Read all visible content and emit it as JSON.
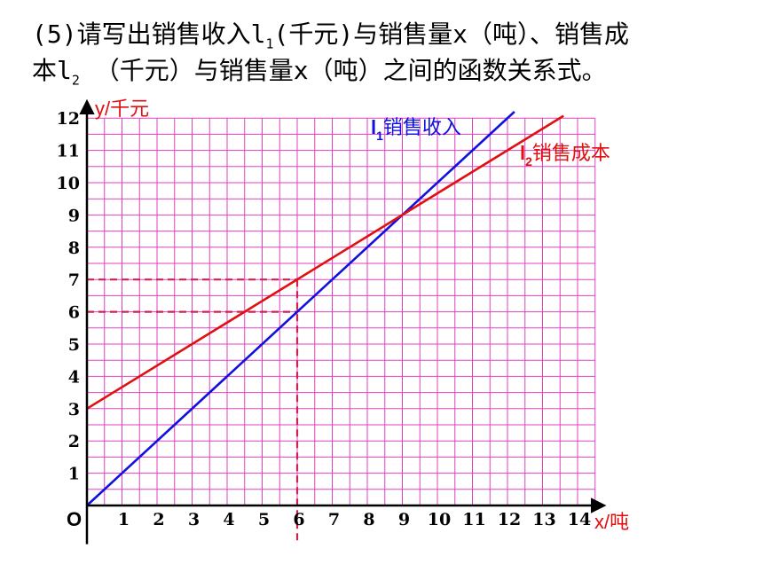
{
  "question": {
    "line1_pre": "(5)请写出销售收入l",
    "line1_sub": "1",
    "line1_post": "(千元)与销售量x（吨）、销售成",
    "line2_pre": "本l",
    "line2_sub": "2",
    "line2_post": " （千元）与销售量x（吨）之间的函数关系式。"
  },
  "chart_data": {
    "type": "line",
    "title": "",
    "xlabel": "x/吨",
    "ylabel": "y/千元",
    "origin_label": "O",
    "xlim": [
      0,
      14.5
    ],
    "ylim": [
      0,
      12.5
    ],
    "x_ticks": [
      "1",
      "2",
      "3",
      "4",
      "5",
      "6",
      "7",
      "8",
      "9",
      "10",
      "11",
      "12",
      "13",
      "14"
    ],
    "y_ticks": [
      "1",
      "2",
      "3",
      "4",
      "5",
      "6",
      "7",
      "8",
      "9",
      "10",
      "11",
      "12"
    ],
    "grid": true,
    "grid_color": "#e040c0",
    "series": [
      {
        "name_base": "l",
        "name_sub": "1",
        "name_text": "销售收入",
        "color": "#1010e0",
        "x": [
          0,
          12.2
        ],
        "y": [
          0,
          12.2
        ]
      },
      {
        "name_base": "l",
        "name_sub": "2",
        "name_text": "销售成本",
        "color": "#e01010",
        "x": [
          0,
          13.6
        ],
        "y": [
          3,
          12.07
        ]
      }
    ],
    "annotations": [
      {
        "type": "dashed_guide",
        "x": 6,
        "y": 7,
        "color": "#d02050"
      },
      {
        "type": "dashed_guide",
        "x": 6,
        "y": 6,
        "color": "#d02050"
      }
    ]
  }
}
